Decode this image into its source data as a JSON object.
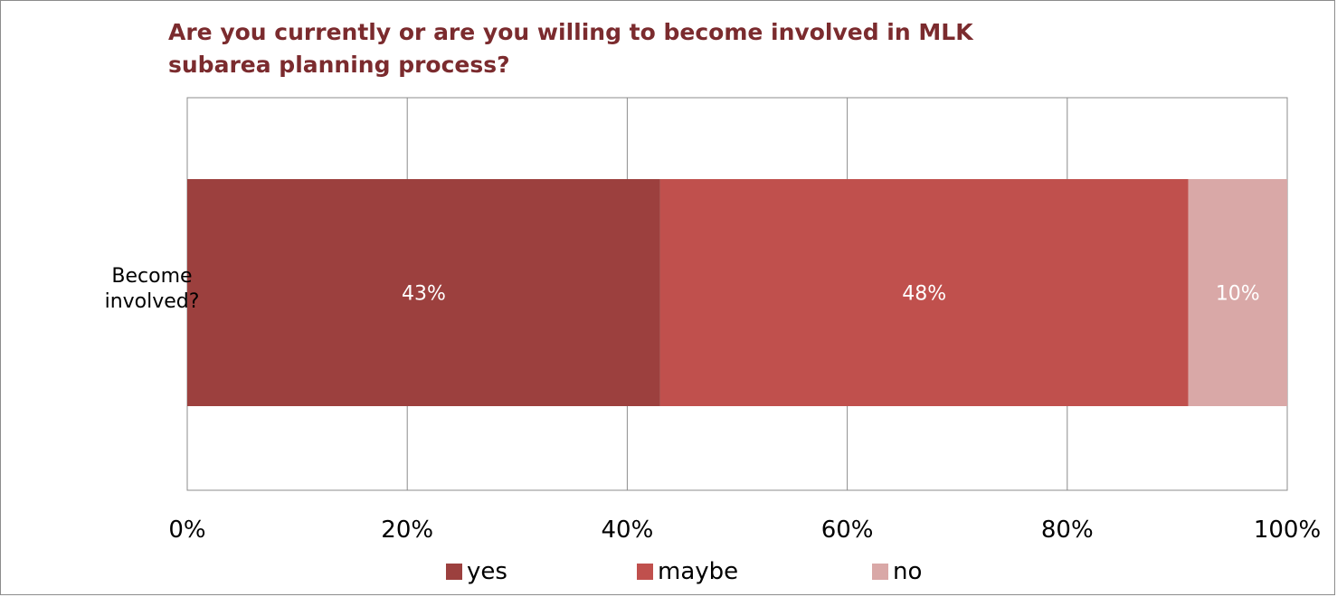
{
  "chart_data": {
    "type": "bar",
    "orientation": "horizontal",
    "stacked": true,
    "title": "Are you currently or are you willing to become involved in MLK subarea planning process?",
    "categories": [
      "Become involved?"
    ],
    "series": [
      {
        "name": "yes",
        "values": [
          43
        ],
        "data_label": "43%",
        "color": "#9c403e"
      },
      {
        "name": "maybe",
        "values": [
          48
        ],
        "data_label": "48%",
        "color": "#c0504d"
      },
      {
        "name": "no",
        "values": [
          10
        ],
        "data_label": "10%",
        "color": "#d9a8a7"
      }
    ],
    "xlim": [
      0,
      100
    ],
    "xticks": [
      "0%",
      "20%",
      "40%",
      "60%",
      "80%",
      "100%"
    ],
    "xlabel": "",
    "ylabel": "",
    "grid": true,
    "legend_position": "bottom"
  }
}
